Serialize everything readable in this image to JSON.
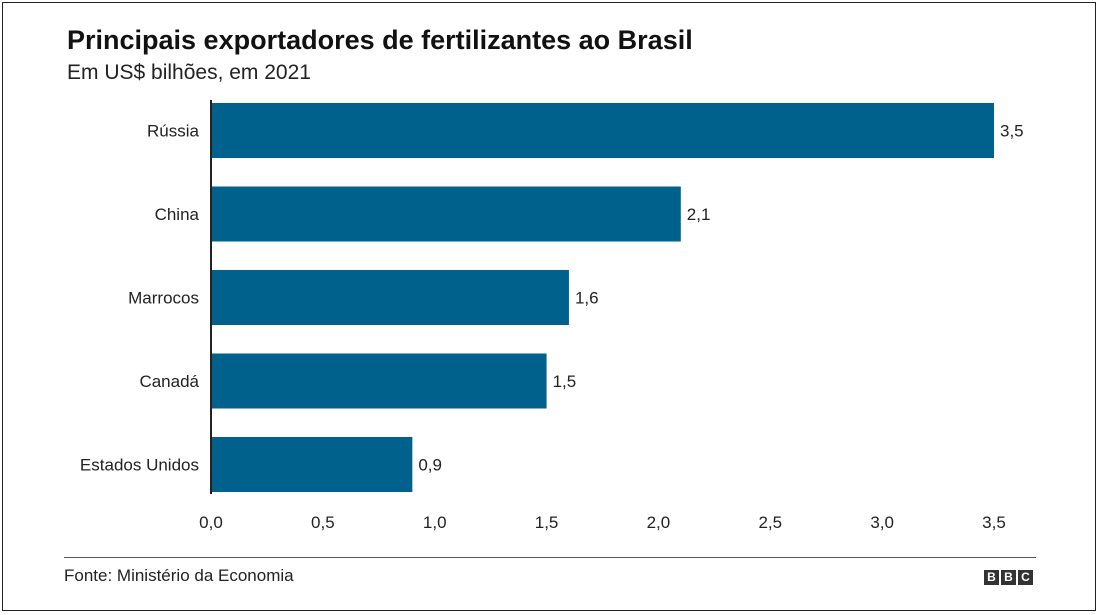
{
  "chart_data": {
    "type": "bar",
    "orientation": "horizontal",
    "title": "Principais exportadores de fertilizantes ao Brasil",
    "subtitle": "Em US$ bilhões, em 2021",
    "categories": [
      "Rússia",
      "China",
      "Marrocos",
      "Canadá",
      "Estados Unidos"
    ],
    "values": [
      3.5,
      2.1,
      1.6,
      1.5,
      0.9
    ],
    "value_labels": [
      "3,5",
      "2,1",
      "1,6",
      "1,5",
      "0,9"
    ],
    "xlim": [
      0,
      3.5
    ],
    "x_ticks": [
      0,
      0.5,
      1.0,
      1.5,
      2.0,
      2.5,
      3.0,
      3.5
    ],
    "x_tick_labels": [
      "0,0",
      "0,5",
      "1,0",
      "1,5",
      "2,0",
      "2,5",
      "3,0",
      "3,5"
    ],
    "bar_color": "#00618d",
    "grid": false,
    "legend": "none"
  },
  "footer": {
    "source": "Fonte: Ministério da Economia",
    "logo_letters": [
      "B",
      "B",
      "C"
    ]
  }
}
